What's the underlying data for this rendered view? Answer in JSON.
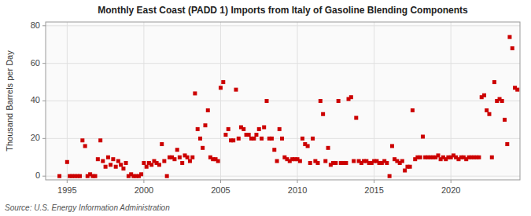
{
  "chart_data": {
    "type": "scatter",
    "title": "Monthly East Coast (PADD 1) Imports from Italy of Gasoline Blending Components",
    "y_label": "Thousand Barrels per Day",
    "annotations": [
      "Source: U.S. Energy Information Administration"
    ],
    "x": [
      1994.5,
      1995.0,
      1995.17,
      1995.33,
      1995.5,
      1995.67,
      1995.83,
      1996.0,
      1996.17,
      1996.33,
      1996.5,
      1996.67,
      1996.83,
      1997.0,
      1997.17,
      1997.33,
      1997.5,
      1997.67,
      1997.83,
      1998.0,
      1998.17,
      1998.33,
      1998.5,
      1998.67,
      1998.83,
      1999.0,
      1999.17,
      1999.33,
      1999.5,
      1999.67,
      1999.83,
      2000.0,
      2000.17,
      2000.33,
      2000.5,
      2000.67,
      2000.83,
      2001.0,
      2001.17,
      2001.33,
      2001.5,
      2001.67,
      2001.83,
      2002.0,
      2002.17,
      2002.33,
      2002.5,
      2002.67,
      2002.83,
      2003.0,
      2003.17,
      2003.33,
      2003.5,
      2003.67,
      2003.83,
      2004.0,
      2004.17,
      2004.33,
      2004.5,
      2004.67,
      2004.83,
      2005.0,
      2005.17,
      2005.33,
      2005.5,
      2005.67,
      2005.83,
      2006.0,
      2006.17,
      2006.33,
      2006.5,
      2006.67,
      2006.83,
      2007.0,
      2007.17,
      2007.33,
      2007.5,
      2007.67,
      2007.83,
      2008.0,
      2008.17,
      2008.33,
      2008.5,
      2008.67,
      2008.83,
      2009.0,
      2009.17,
      2009.33,
      2009.5,
      2009.67,
      2009.83,
      2010.0,
      2010.17,
      2010.33,
      2010.5,
      2010.67,
      2010.83,
      2011.0,
      2011.17,
      2011.33,
      2011.5,
      2011.67,
      2011.83,
      2012.0,
      2012.17,
      2012.33,
      2012.5,
      2012.67,
      2012.83,
      2013.0,
      2013.17,
      2013.33,
      2013.5,
      2013.67,
      2013.83,
      2014.0,
      2014.17,
      2014.33,
      2014.5,
      2014.67,
      2014.83,
      2015.0,
      2015.17,
      2015.33,
      2015.5,
      2015.67,
      2015.83,
      2016.0,
      2016.17,
      2016.33,
      2016.5,
      2016.67,
      2016.83,
      2017.0,
      2017.17,
      2017.33,
      2017.5,
      2017.67,
      2017.83,
      2018.0,
      2018.17,
      2018.33,
      2018.5,
      2018.67,
      2018.83,
      2019.0,
      2019.17,
      2019.33,
      2019.5,
      2019.67,
      2019.83,
      2020.0,
      2020.17,
      2020.33,
      2020.5,
      2020.67,
      2020.83,
      2021.0,
      2021.17,
      2021.33,
      2021.5,
      2021.67,
      2021.83,
      2022.0,
      2022.17,
      2022.33,
      2022.5,
      2022.67,
      2022.83,
      2023.0,
      2023.17,
      2023.33,
      2023.5,
      2023.67,
      2023.83,
      2024.0,
      2024.17,
      2024.33
    ],
    "values": [
      0.0,
      7.5,
      0,
      0,
      0,
      0,
      0,
      19,
      16,
      0,
      1,
      0,
      0,
      9,
      19,
      8,
      5,
      10,
      6,
      9,
      5,
      8,
      6,
      4,
      7,
      0,
      1,
      0,
      0,
      0,
      1,
      7,
      5,
      7,
      6,
      8,
      7,
      6,
      17,
      8,
      0,
      10,
      10,
      9,
      14,
      10,
      7,
      11,
      10,
      8,
      10,
      44,
      25,
      20,
      15,
      27,
      35,
      10,
      9,
      9,
      8,
      47,
      50,
      22,
      25,
      19,
      19,
      46,
      20,
      26,
      25,
      22,
      22,
      20,
      20,
      22,
      25,
      20,
      26,
      40,
      20,
      20,
      14,
      8,
      25,
      20,
      10,
      9,
      8,
      9,
      9,
      9,
      8,
      20,
      17,
      16,
      7,
      20,
      8,
      7,
      40,
      33,
      8,
      15,
      6,
      7,
      7,
      40,
      7,
      7,
      7,
      41,
      42,
      8,
      31,
      8,
      7,
      8,
      8,
      7,
      7,
      8,
      8,
      7,
      7,
      8,
      7,
      0,
      16,
      9,
      8,
      7,
      8,
      3,
      5,
      5,
      35,
      9,
      10,
      10,
      21,
      10,
      10,
      10,
      10,
      10,
      11,
      9,
      10,
      9,
      10,
      10,
      11,
      10,
      9,
      10,
      10,
      9,
      10,
      10,
      10,
      10,
      10,
      42,
      43,
      35,
      33,
      10,
      50,
      40,
      41,
      40,
      30,
      17,
      74,
      68,
      47,
      46
    ],
    "color": "#CC0000",
    "marker": "square",
    "xlim": [
      1993.6,
      2024.5
    ],
    "ylim": [
      -2,
      82
    ],
    "xticks": [
      1995,
      2000,
      2005,
      2010,
      2015,
      2020
    ],
    "yticks": [
      0,
      20,
      40,
      60,
      80
    ],
    "grid": true
  }
}
